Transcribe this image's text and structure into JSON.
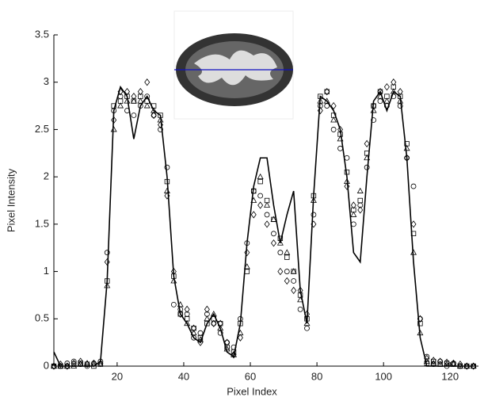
{
  "chart_data": {
    "type": "line",
    "x_label": "Pixel Index",
    "y_label": "Pixel Intensity",
    "xlim": [
      1,
      128.5
    ],
    "ylim": [
      0,
      3.5
    ],
    "xticks": [
      20,
      40,
      60,
      80,
      100,
      120
    ],
    "yticks": [
      0,
      0.5,
      1,
      1.5,
      2,
      2.5,
      3,
      3.5
    ],
    "x": [
      1,
      3,
      5,
      7,
      9,
      11,
      13,
      15,
      17,
      19,
      21,
      23,
      25,
      27,
      29,
      31,
      33,
      35,
      37,
      39,
      41,
      43,
      45,
      47,
      49,
      51,
      53,
      55,
      57,
      59,
      61,
      63,
      65,
      67,
      69,
      71,
      73,
      75,
      77,
      79,
      81,
      83,
      85,
      87,
      89,
      91,
      93,
      95,
      97,
      99,
      101,
      103,
      105,
      107,
      109,
      111,
      113,
      115,
      117,
      119,
      121,
      123,
      125,
      127
    ],
    "series": [
      {
        "color": "#000000",
        "marker": "none",
        "values": [
          0.15,
          0,
          0,
          0,
          0,
          0,
          0,
          0.05,
          0.9,
          2.7,
          2.95,
          2.85,
          2.4,
          2.75,
          2.85,
          2.7,
          2.65,
          2.0,
          0.95,
          0.55,
          0.45,
          0.3,
          0.25,
          0.45,
          0.55,
          0.4,
          0.15,
          0.1,
          0.45,
          1.3,
          1.9,
          2.2,
          2.2,
          1.7,
          1.3,
          1.6,
          1.85,
          0.8,
          0.45,
          1.8,
          2.85,
          2.8,
          2.7,
          2.5,
          2.0,
          1.2,
          1.1,
          2.0,
          2.8,
          2.9,
          2.7,
          2.9,
          2.85,
          2.2,
          1.1,
          0.3,
          0,
          0,
          0,
          0,
          0,
          0,
          0,
          0
        ]
      },
      {
        "color": "#000000",
        "marker": "circle",
        "values": [
          0,
          0,
          0.03,
          0.05,
          0.02,
          0,
          0.03,
          0.05,
          1.2,
          2.7,
          2.85,
          2.7,
          2.65,
          2.75,
          2.85,
          2.65,
          2.5,
          2.1,
          0.65,
          0.6,
          0.55,
          0.3,
          0.35,
          0.55,
          0.45,
          0.35,
          0.25,
          0.2,
          0.5,
          1.3,
          1.85,
          1.8,
          1.6,
          1.4,
          1.2,
          1.0,
          0.9,
          0.6,
          0.4,
          1.6,
          2.75,
          2.75,
          2.5,
          2.3,
          2.2,
          1.5,
          1.7,
          2.1,
          2.6,
          2.8,
          2.75,
          2.85,
          2.75,
          2.2,
          1.9,
          0.5,
          0.1,
          0.02,
          0.05,
          0,
          0.03,
          0,
          0,
          0
        ]
      },
      {
        "color": "#000000",
        "marker": "square",
        "values": [
          0,
          0,
          0,
          0.02,
          0.03,
          0.02,
          0,
          0.02,
          0.9,
          2.75,
          2.8,
          2.85,
          2.8,
          2.85,
          2.8,
          2.75,
          2.65,
          1.95,
          0.95,
          0.55,
          0.5,
          0.4,
          0.3,
          0.45,
          0.5,
          0.45,
          0.2,
          0.15,
          0.45,
          1.0,
          1.85,
          1.95,
          1.75,
          1.55,
          1.35,
          1.15,
          1.0,
          0.75,
          0.5,
          1.8,
          2.85,
          2.9,
          2.65,
          2.45,
          2.05,
          1.65,
          1.75,
          2.25,
          2.75,
          2.9,
          2.85,
          2.95,
          2.85,
          2.35,
          1.4,
          0.45,
          0.03,
          0.05,
          0.02,
          0.03,
          0.02,
          0,
          0,
          0
        ]
      },
      {
        "color": "#000000",
        "marker": "triangle",
        "values": [
          0,
          0,
          0,
          0,
          0.02,
          0.03,
          0.02,
          0.02,
          0.85,
          2.5,
          2.75,
          2.8,
          2.8,
          2.8,
          2.75,
          2.7,
          2.6,
          1.85,
          0.9,
          0.65,
          0.45,
          0.35,
          0.28,
          0.5,
          0.55,
          0.4,
          0.18,
          0.12,
          0.35,
          1.05,
          1.75,
          2.0,
          1.7,
          1.55,
          1.3,
          1.2,
          1.0,
          0.7,
          0.45,
          1.75,
          2.8,
          2.8,
          2.6,
          2.4,
          1.95,
          1.6,
          1.85,
          2.2,
          2.7,
          2.85,
          2.8,
          2.9,
          2.8,
          2.3,
          1.2,
          0.35,
          0.05,
          0.03,
          0.02,
          0.02,
          0.02,
          0,
          0,
          0
        ]
      },
      {
        "color": "#000000",
        "marker": "diamond",
        "values": [
          0,
          0.02,
          0,
          0.03,
          0.05,
          0.02,
          0.03,
          0.03,
          1.1,
          2.6,
          2.9,
          2.9,
          2.85,
          2.9,
          3.0,
          2.65,
          2.55,
          1.8,
          1.0,
          0.55,
          0.6,
          0.4,
          0.25,
          0.6,
          0.45,
          0.45,
          0.25,
          0.12,
          0.3,
          1.2,
          1.6,
          1.7,
          1.5,
          1.3,
          1.0,
          0.9,
          0.8,
          0.8,
          0.55,
          1.5,
          2.7,
          2.9,
          2.75,
          2.5,
          1.9,
          1.7,
          1.65,
          2.35,
          2.75,
          2.9,
          2.95,
          3.0,
          2.9,
          2.2,
          1.5,
          0.5,
          0.08,
          0.06,
          0.05,
          0.04,
          0.03,
          0.02,
          0,
          0
        ]
      }
    ]
  }
}
